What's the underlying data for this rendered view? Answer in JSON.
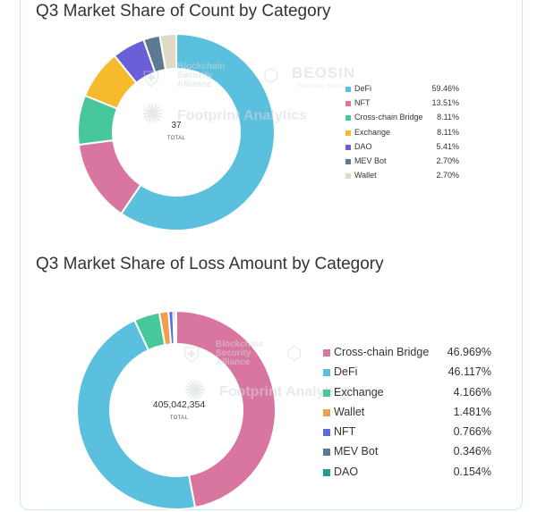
{
  "charts": [
    {
      "type": "pie",
      "title": "Q3 Market Share of Count by Category",
      "center_value": "37",
      "center_label": "TOTAL",
      "categories": [
        "DeFi",
        "NFT",
        "Cross-chain Bridge",
        "Exchange",
        "DAO",
        "MEV Bot",
        "Wallet"
      ],
      "values": [
        59.46,
        13.51,
        8.11,
        8.11,
        5.41,
        2.7,
        2.7
      ],
      "value_labels": [
        "59.46%",
        "13.51%",
        "8.11%",
        "8.11%",
        "5.41%",
        "2.70%",
        "2.70%"
      ],
      "colors": [
        "#5bc0de",
        "#d9769f",
        "#47c79a",
        "#f5bb2c",
        "#6a5fd6",
        "#5c7a94",
        "#dedcc6"
      ]
    },
    {
      "type": "pie",
      "title": "Q3 Market Share of Loss Amount by Category",
      "center_value": "405,042,354",
      "center_label": "TOTAL",
      "categories": [
        "Cross-chain Bridge",
        "DeFi",
        "Exchange",
        "Wallet",
        "NFT",
        "MEV Bot",
        "DAO"
      ],
      "values": [
        46.969,
        46.117,
        4.166,
        1.481,
        0.766,
        0.346,
        0.154
      ],
      "value_labels": [
        "46.969%",
        "46.117%",
        "4.166%",
        "1.481%",
        "0.766%",
        "0.346%",
        "0.154%"
      ],
      "colors": [
        "#d9769f",
        "#5bc0de",
        "#47c79a",
        "#f0a04a",
        "#5b6be0",
        "#5c7a94",
        "#1f9e90"
      ]
    }
  ],
  "watermarks": {
    "bsa": "Blockchain Security Alliance",
    "beosin": "BEOSIN",
    "beosin_sub": "Blockchain Security",
    "footprint": "Footprint Analytics"
  }
}
